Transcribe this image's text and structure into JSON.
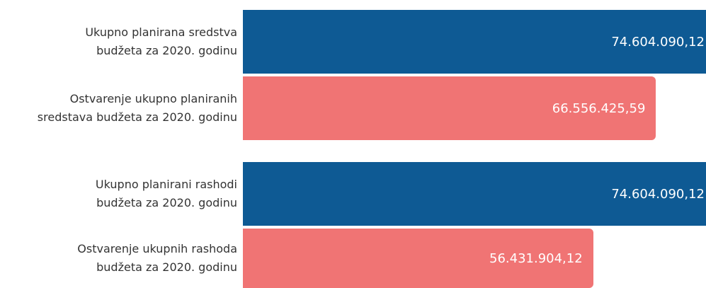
{
  "chart_data": {
    "type": "bar",
    "orientation": "horizontal",
    "categories": [
      "Ukupno planirana sredstva\nbudžeta za 2020. godinu",
      "Ostvarenje ukupno planiranih\nsredstava budžeta za 2020. godinu",
      "Ukupno planirani rashodi\nbudžeta za 2020. godinu",
      "Ostvarenje ukupnih rashoda\nbudžeta za 2020. godinu"
    ],
    "values": [
      74604090.12,
      66556425.59,
      74604090.12,
      56431904.12
    ],
    "value_labels": [
      "74.604.090,12",
      "66.556.425,59",
      "74.604.090,12",
      "56.431.904,12"
    ],
    "colors": [
      "#0e5a94",
      "#f07474",
      "#0e5a94",
      "#f07474"
    ]
  }
}
